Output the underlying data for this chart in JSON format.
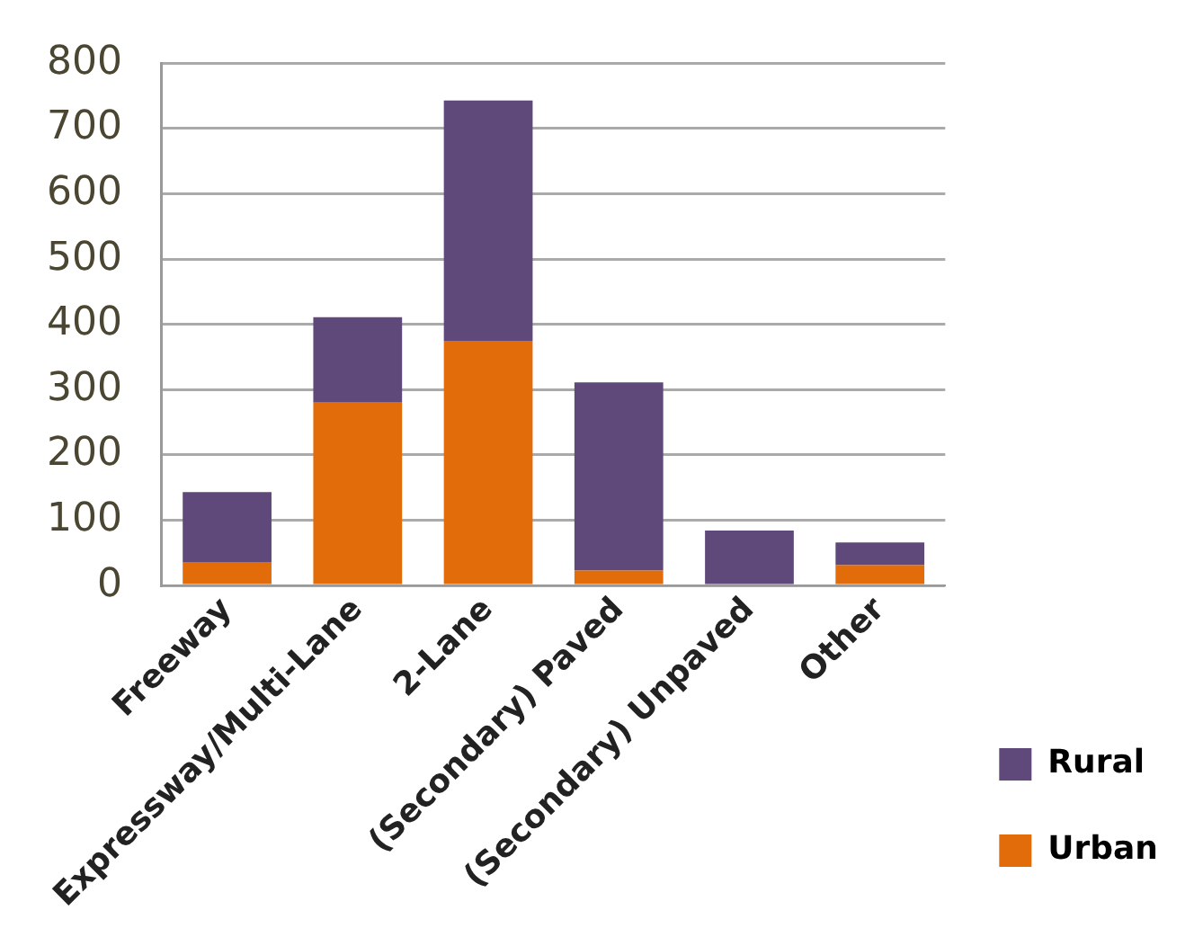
{
  "chart_data": {
    "type": "bar",
    "stacked": true,
    "categories": [
      "Freeway",
      "Expressway/Multi-Lane",
      "2-Lane",
      "(Secondary) Paved",
      "(Secondary) Unpaved",
      "Other"
    ],
    "series": [
      {
        "name": "Urban",
        "color": "#e36c0a",
        "values": [
          36,
          280,
          375,
          23,
          null,
          31
        ]
      },
      {
        "name": "Rural",
        "color": "#5f497a",
        "values": [
          107,
          131,
          368,
          288,
          84,
          35
        ]
      }
    ],
    "ylim": [
      0,
      800
    ],
    "yticks": [
      0,
      100,
      200,
      300,
      400,
      500,
      600,
      700,
      800
    ],
    "grid": "y",
    "legend": "right"
  }
}
